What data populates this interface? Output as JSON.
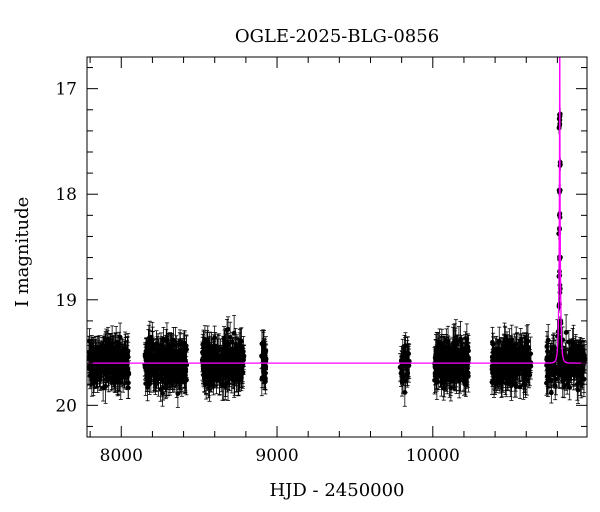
{
  "chart_data": {
    "type": "scatter",
    "title": "OGLE-2025-BLG-0856",
    "xlabel": "HJD - 2450000",
    "ylabel": "I magnitude",
    "xlim": [
      7780,
      10990
    ],
    "ylim": [
      20.3,
      16.7
    ],
    "y_inverted": true,
    "x_ticks": [
      {
        "value": 8000,
        "label": "8000"
      },
      {
        "value": 9000,
        "label": "9000"
      },
      {
        "value": 10000,
        "label": "10000"
      }
    ],
    "y_ticks": [
      {
        "value": 17,
        "label": "17"
      },
      {
        "value": 18,
        "label": "18"
      },
      {
        "value": 19,
        "label": "19"
      },
      {
        "value": 20,
        "label": "20"
      }
    ],
    "x_minor_step": 200,
    "y_minor_step": 0.2,
    "grid": false,
    "colors": {
      "points": "#000000",
      "model": "#ff00ff",
      "axes": "#000000"
    },
    "observing_seasons": [
      {
        "start": 7790,
        "end": 8050,
        "n": 260
      },
      {
        "start": 8150,
        "end": 8420,
        "n": 300
      },
      {
        "start": 8520,
        "end": 8790,
        "n": 300
      },
      {
        "start": 8900,
        "end": 8930,
        "n": 35
      },
      {
        "start": 9790,
        "end": 9850,
        "n": 40
      },
      {
        "start": 10010,
        "end": 10230,
        "n": 250
      },
      {
        "start": 10380,
        "end": 10630,
        "n": 260
      },
      {
        "start": 10730,
        "end": 10980,
        "n": 200
      }
    ],
    "baseline_magnitude": 19.6,
    "baseline_scatter": 0.17,
    "typical_error": 0.13,
    "series": [
      {
        "kind": "model",
        "type": "line",
        "description": "microlensing (Paczynski) model",
        "t0": 10815,
        "u0": 0.036,
        "tE": 10,
        "baseline": 19.6
      },
      {
        "kind": "event_points",
        "type": "scatter",
        "x": [
          10810,
          10811,
          10812,
          10813,
          10814,
          10815,
          10815.3,
          10815.6,
          10816,
          10817,
          10818,
          10819,
          10820,
          10822
        ],
        "y": [
          19.3,
          19.05,
          18.75,
          18.35,
          18.0,
          17.35,
          17.25,
          17.3,
          17.7,
          18.2,
          18.6,
          18.9,
          19.2,
          19.4
        ]
      }
    ]
  }
}
